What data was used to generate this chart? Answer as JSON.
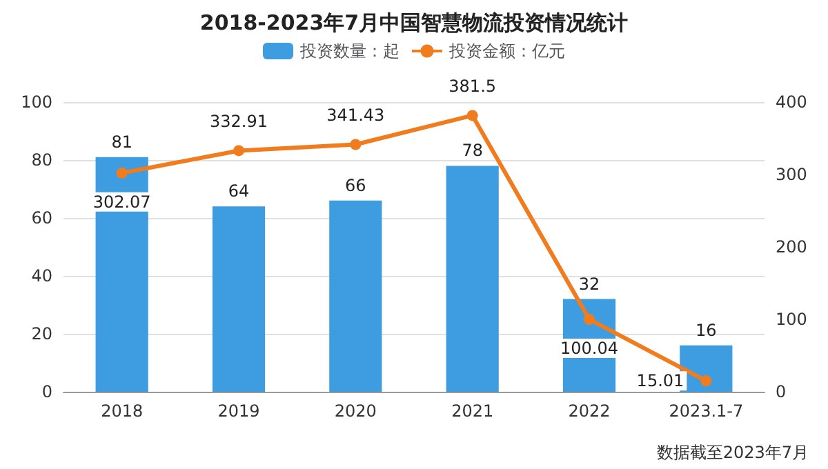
{
  "chart_data": {
    "type": "bar",
    "title": "2018-2023年7月中国智慧物流投资情况统计",
    "categories": [
      "2018",
      "2019",
      "2020",
      "2021",
      "2022",
      "2023.1-7"
    ],
    "series": [
      {
        "name": "投资数量：起",
        "color": "#3d9de0",
        "values": [
          81,
          64,
          66,
          78,
          32,
          16
        ]
      },
      {
        "name": "投资金额：亿元",
        "type": "line",
        "axis": "y2",
        "color": "#f07c1e",
        "values": [
          302.07,
          332.91,
          341.43,
          381.5,
          100.04,
          15.01
        ]
      }
    ],
    "ylim": [
      0,
      100
    ],
    "yticks": [
      0,
      20,
      40,
      60,
      80,
      100
    ],
    "y2lim": [
      0,
      400
    ],
    "y2ticks": [
      0,
      100,
      200,
      300,
      400
    ],
    "data_labels": true,
    "grid": "y",
    "legend": "top",
    "marker": "circle",
    "annotations": [
      "数据截至2023年7月"
    ]
  }
}
